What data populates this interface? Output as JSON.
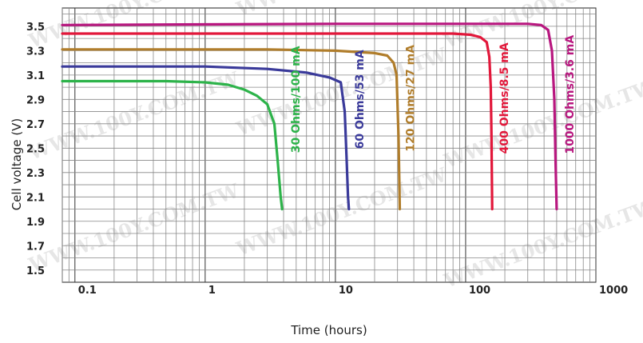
{
  "chart_data": {
    "type": "line",
    "title": "",
    "xlabel": "Time (hours)",
    "ylabel": "Cell voltage (V)",
    "x_scale": "log",
    "xlim": [
      0.08,
      1000
    ],
    "ylim": [
      1.4,
      3.65
    ],
    "x_tick_labels": [
      "0.1",
      "1",
      "10",
      "100",
      "1000"
    ],
    "x_ticks": [
      0.1,
      1,
      10,
      100,
      1000
    ],
    "y_ticks": [
      1.5,
      1.7,
      1.9,
      2.1,
      2.3,
      2.5,
      2.7,
      2.9,
      3.1,
      3.3,
      3.5
    ],
    "y_tick_labels": [
      "1.5",
      "1.7",
      "1.9",
      "2.1",
      "2.3",
      "2.5",
      "2.7",
      "2.9",
      "3.1",
      "3.3",
      "3.5"
    ],
    "grid": true,
    "series": [
      {
        "name": "30 Ohms/100 mA",
        "color": "#2db34a",
        "points": [
          [
            0.08,
            3.05
          ],
          [
            0.5,
            3.05
          ],
          [
            1,
            3.04
          ],
          [
            1.5,
            3.02
          ],
          [
            2,
            2.98
          ],
          [
            2.5,
            2.93
          ],
          [
            3,
            2.86
          ],
          [
            3.4,
            2.7
          ],
          [
            3.6,
            2.4
          ],
          [
            3.8,
            2.1
          ],
          [
            3.9,
            2.0
          ]
        ]
      },
      {
        "name": "60 Ohms/53 mA",
        "color": "#3a3a9a",
        "points": [
          [
            0.08,
            3.17
          ],
          [
            1,
            3.17
          ],
          [
            3,
            3.15
          ],
          [
            6,
            3.12
          ],
          [
            9,
            3.08
          ],
          [
            11,
            3.04
          ],
          [
            11.8,
            2.8
          ],
          [
            12.2,
            2.4
          ],
          [
            12.5,
            2.1
          ],
          [
            12.7,
            2.0
          ]
        ]
      },
      {
        "name": "120 Ohms/27 mA",
        "color": "#b07d2b",
        "points": [
          [
            0.08,
            3.31
          ],
          [
            3,
            3.31
          ],
          [
            10,
            3.3
          ],
          [
            20,
            3.28
          ],
          [
            25,
            3.26
          ],
          [
            28,
            3.2
          ],
          [
            29.5,
            3.1
          ],
          [
            30.5,
            2.6
          ],
          [
            31,
            2.2
          ],
          [
            31.2,
            2.0
          ]
        ]
      },
      {
        "name": "400 Ohms/8.5 mA",
        "color": "#e2173a",
        "points": [
          [
            0.08,
            3.44
          ],
          [
            10,
            3.44
          ],
          [
            80,
            3.44
          ],
          [
            110,
            3.43
          ],
          [
            130,
            3.41
          ],
          [
            145,
            3.37
          ],
          [
            152,
            3.25
          ],
          [
            156,
            3.0
          ],
          [
            158,
            2.6
          ],
          [
            160,
            2.0
          ]
        ]
      },
      {
        "name": "1000 Ohms/3.6 mA",
        "color": "#b8177f",
        "points": [
          [
            0.08,
            3.51
          ],
          [
            10,
            3.52
          ],
          [
            100,
            3.52
          ],
          [
            300,
            3.52
          ],
          [
            380,
            3.51
          ],
          [
            430,
            3.47
          ],
          [
            460,
            3.3
          ],
          [
            480,
            2.9
          ],
          [
            490,
            2.4
          ],
          [
            500,
            2.0
          ]
        ]
      }
    ]
  },
  "curve_labels": [
    {
      "series": "30 Ohms/100 mA",
      "text": "30 Ohms/100 mA",
      "x": 5.0,
      "y": 2.9
    },
    {
      "series": "60 Ohms/53 mA",
      "text": "60 Ohms/53 mA",
      "x": 15.5,
      "y": 2.9
    },
    {
      "series": "120 Ohms/27 mA",
      "text": "120 Ohms/27 mA",
      "x": 38.0,
      "y": 2.91
    },
    {
      "series": "400 Ohms/8.5 mA",
      "text": "400 Ohms/8.5 mA",
      "x": 200.0,
      "y": 2.91
    },
    {
      "series": "1000 Ohms/3.6 mA",
      "text": "1000 Ohms/3.6 mA",
      "x": 635.0,
      "y": 2.94
    }
  ],
  "watermark": {
    "text": "WWW.100Y.COM.TW",
    "color": "#e6e6e6"
  }
}
